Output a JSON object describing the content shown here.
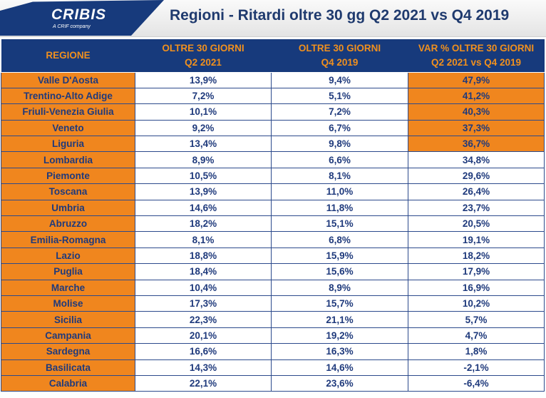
{
  "header": {
    "logo": "CRIBIS",
    "logo_sub": "A CRIF company",
    "title": "Regioni - Ritardi oltre 30 gg Q2 2021 vs Q4 2019"
  },
  "columns": [
    {
      "line1": "REGIONE",
      "line2": ""
    },
    {
      "line1": "OLTRE 30 GIORNI",
      "line2": "Q2 2021"
    },
    {
      "line1": "OLTRE 30 GIORNI",
      "line2": "Q4 2019"
    },
    {
      "line1": "VAR % OLTRE 30 GIORNI",
      "line2": "Q2 2021 vs Q4 2019"
    }
  ],
  "colors": {
    "header_bg": "#173a7c",
    "accent_orange": "#f0861e",
    "text_blue": "#1f3a7c"
  },
  "rows": [
    {
      "region": "Valle D'Aosta",
      "q2_2021": "13,9%",
      "q4_2019": "9,4%",
      "var": "47,9%",
      "highlight": true
    },
    {
      "region": "Trentino-Alto Adige",
      "q2_2021": "7,2%",
      "q4_2019": "5,1%",
      "var": "41,2%",
      "highlight": true
    },
    {
      "region": "Friuli-Venezia Giulia",
      "q2_2021": "10,1%",
      "q4_2019": "7,2%",
      "var": "40,3%",
      "highlight": true
    },
    {
      "region": "Veneto",
      "q2_2021": "9,2%",
      "q4_2019": "6,7%",
      "var": "37,3%",
      "highlight": true
    },
    {
      "region": "Liguria",
      "q2_2021": "13,4%",
      "q4_2019": "9,8%",
      "var": "36,7%",
      "highlight": true
    },
    {
      "region": "Lombardia",
      "q2_2021": "8,9%",
      "q4_2019": "6,6%",
      "var": "34,8%",
      "highlight": false
    },
    {
      "region": "Piemonte",
      "q2_2021": "10,5%",
      "q4_2019": "8,1%",
      "var": "29,6%",
      "highlight": false
    },
    {
      "region": "Toscana",
      "q2_2021": "13,9%",
      "q4_2019": "11,0%",
      "var": "26,4%",
      "highlight": false
    },
    {
      "region": "Umbria",
      "q2_2021": "14,6%",
      "q4_2019": "11,8%",
      "var": "23,7%",
      "highlight": false
    },
    {
      "region": "Abruzzo",
      "q2_2021": "18,2%",
      "q4_2019": "15,1%",
      "var": "20,5%",
      "highlight": false
    },
    {
      "region": "Emilia-Romagna",
      "q2_2021": "8,1%",
      "q4_2019": "6,8%",
      "var": "19,1%",
      "highlight": false
    },
    {
      "region": "Lazio",
      "q2_2021": "18,8%",
      "q4_2019": "15,9%",
      "var": "18,2%",
      "highlight": false
    },
    {
      "region": "Puglia",
      "q2_2021": "18,4%",
      "q4_2019": "15,6%",
      "var": "17,9%",
      "highlight": false
    },
    {
      "region": "Marche",
      "q2_2021": "10,4%",
      "q4_2019": "8,9%",
      "var": "16,9%",
      "highlight": false
    },
    {
      "region": "Molise",
      "q2_2021": "17,3%",
      "q4_2019": "15,7%",
      "var": "10,2%",
      "highlight": false
    },
    {
      "region": "Sicilia",
      "q2_2021": "22,3%",
      "q4_2019": "21,1%",
      "var": "5,7%",
      "highlight": false
    },
    {
      "region": "Campania",
      "q2_2021": "20,1%",
      "q4_2019": "19,2%",
      "var": "4,7%",
      "highlight": false
    },
    {
      "region": "Sardegna",
      "q2_2021": "16,6%",
      "q4_2019": "16,3%",
      "var": "1,8%",
      "highlight": false
    },
    {
      "region": "Basilicata",
      "q2_2021": "14,3%",
      "q4_2019": "14,6%",
      "var": "-2,1%",
      "highlight": false
    },
    {
      "region": "Calabria",
      "q2_2021": "22,1%",
      "q4_2019": "23,6%",
      "var": "-6,4%",
      "highlight": false
    }
  ]
}
